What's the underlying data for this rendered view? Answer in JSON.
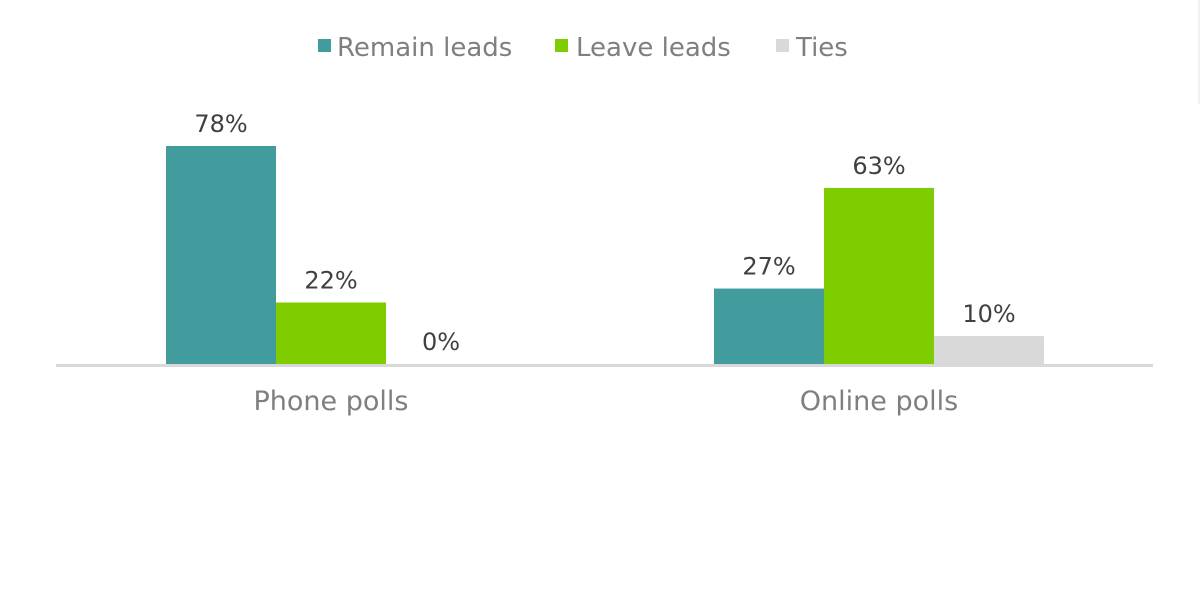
{
  "chart_data": {
    "type": "bar",
    "title": "",
    "xlabel": "",
    "ylabel": "",
    "categories": [
      "Phone polls",
      "Online polls"
    ],
    "series": [
      {
        "name": "Remain leads",
        "values": [
          78,
          27
        ],
        "labels": [
          "78%",
          "27%"
        ],
        "color": "#429b9d"
      },
      {
        "name": "Leave leads",
        "values": [
          22,
          63
        ],
        "labels": [
          "22%",
          "63%"
        ],
        "color": "#7fcc00"
      },
      {
        "name": "Ties",
        "values": [
          0,
          10
        ],
        "labels": [
          "0%",
          "10%"
        ],
        "color": "#d9d9d9"
      }
    ],
    "ylim": [
      0,
      78
    ],
    "value_format": "percent",
    "grid": false,
    "legend_position": "top-center",
    "axis_color": "#d9d9d9",
    "label_color": "#404040",
    "category_label_color": "#7f7f7f"
  }
}
